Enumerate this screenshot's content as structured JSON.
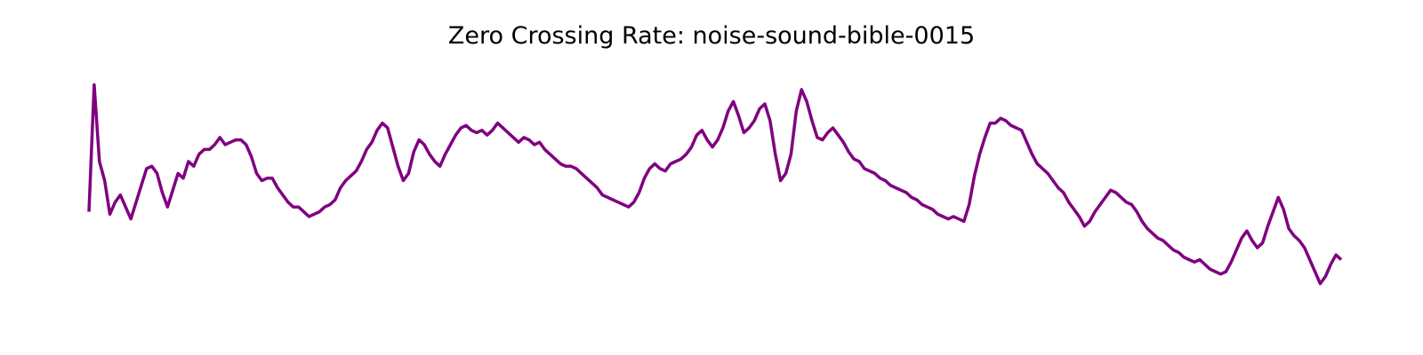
{
  "chart_data": {
    "type": "line",
    "title": "Zero Crossing Rate: noise-sound-bible-0015",
    "xlabel": "",
    "ylabel": "",
    "axes_visible": false,
    "grid": false,
    "line_color": "#800080",
    "series": [
      {
        "values": [
          0.42,
          0.95,
          0.63,
          0.55,
          0.41,
          0.46,
          0.49,
          0.44,
          0.39,
          0.46,
          0.53,
          0.6,
          0.61,
          0.58,
          0.5,
          0.44,
          0.51,
          0.58,
          0.56,
          0.63,
          0.61,
          0.66,
          0.68,
          0.68,
          0.7,
          0.73,
          0.7,
          0.71,
          0.72,
          0.72,
          0.7,
          0.65,
          0.58,
          0.55,
          0.56,
          0.56,
          0.52,
          0.49,
          0.46,
          0.44,
          0.44,
          0.42,
          0.4,
          0.41,
          0.42,
          0.44,
          0.45,
          0.47,
          0.52,
          0.55,
          0.57,
          0.59,
          0.63,
          0.68,
          0.71,
          0.76,
          0.79,
          0.77,
          0.69,
          0.61,
          0.55,
          0.58,
          0.67,
          0.72,
          0.7,
          0.66,
          0.63,
          0.61,
          0.66,
          0.7,
          0.74,
          0.77,
          0.78,
          0.76,
          0.75,
          0.76,
          0.74,
          0.76,
          0.79,
          0.77,
          0.75,
          0.73,
          0.71,
          0.73,
          0.72,
          0.7,
          0.71,
          0.68,
          0.66,
          0.64,
          0.62,
          0.61,
          0.61,
          0.6,
          0.58,
          0.56,
          0.54,
          0.52,
          0.49,
          0.48,
          0.47,
          0.46,
          0.45,
          0.44,
          0.46,
          0.5,
          0.56,
          0.6,
          0.62,
          0.6,
          0.59,
          0.62,
          0.63,
          0.64,
          0.66,
          0.69,
          0.74,
          0.76,
          0.72,
          0.69,
          0.72,
          0.77,
          0.84,
          0.88,
          0.82,
          0.75,
          0.77,
          0.8,
          0.85,
          0.87,
          0.8,
          0.66,
          0.55,
          0.58,
          0.66,
          0.84,
          0.93,
          0.88,
          0.8,
          0.73,
          0.72,
          0.75,
          0.77,
          0.74,
          0.71,
          0.67,
          0.64,
          0.63,
          0.6,
          0.59,
          0.58,
          0.56,
          0.55,
          0.53,
          0.52,
          0.51,
          0.5,
          0.48,
          0.47,
          0.45,
          0.44,
          0.43,
          0.41,
          0.4,
          0.39,
          0.4,
          0.39,
          0.38,
          0.45,
          0.57,
          0.66,
          0.73,
          0.79,
          0.79,
          0.81,
          0.8,
          0.78,
          0.77,
          0.76,
          0.71,
          0.66,
          0.62,
          0.6,
          0.58,
          0.55,
          0.52,
          0.5,
          0.46,
          0.43,
          0.4,
          0.36,
          0.38,
          0.42,
          0.45,
          0.48,
          0.51,
          0.5,
          0.48,
          0.46,
          0.45,
          0.42,
          0.38,
          0.35,
          0.33,
          0.31,
          0.3,
          0.28,
          0.26,
          0.25,
          0.23,
          0.22,
          0.21,
          0.22,
          0.2,
          0.18,
          0.17,
          0.16,
          0.17,
          0.21,
          0.26,
          0.31,
          0.34,
          0.3,
          0.27,
          0.29,
          0.36,
          0.42,
          0.48,
          0.43,
          0.35,
          0.32,
          0.3,
          0.27,
          0.22,
          0.17,
          0.12,
          0.15,
          0.2,
          0.24,
          0.22
        ]
      }
    ]
  }
}
